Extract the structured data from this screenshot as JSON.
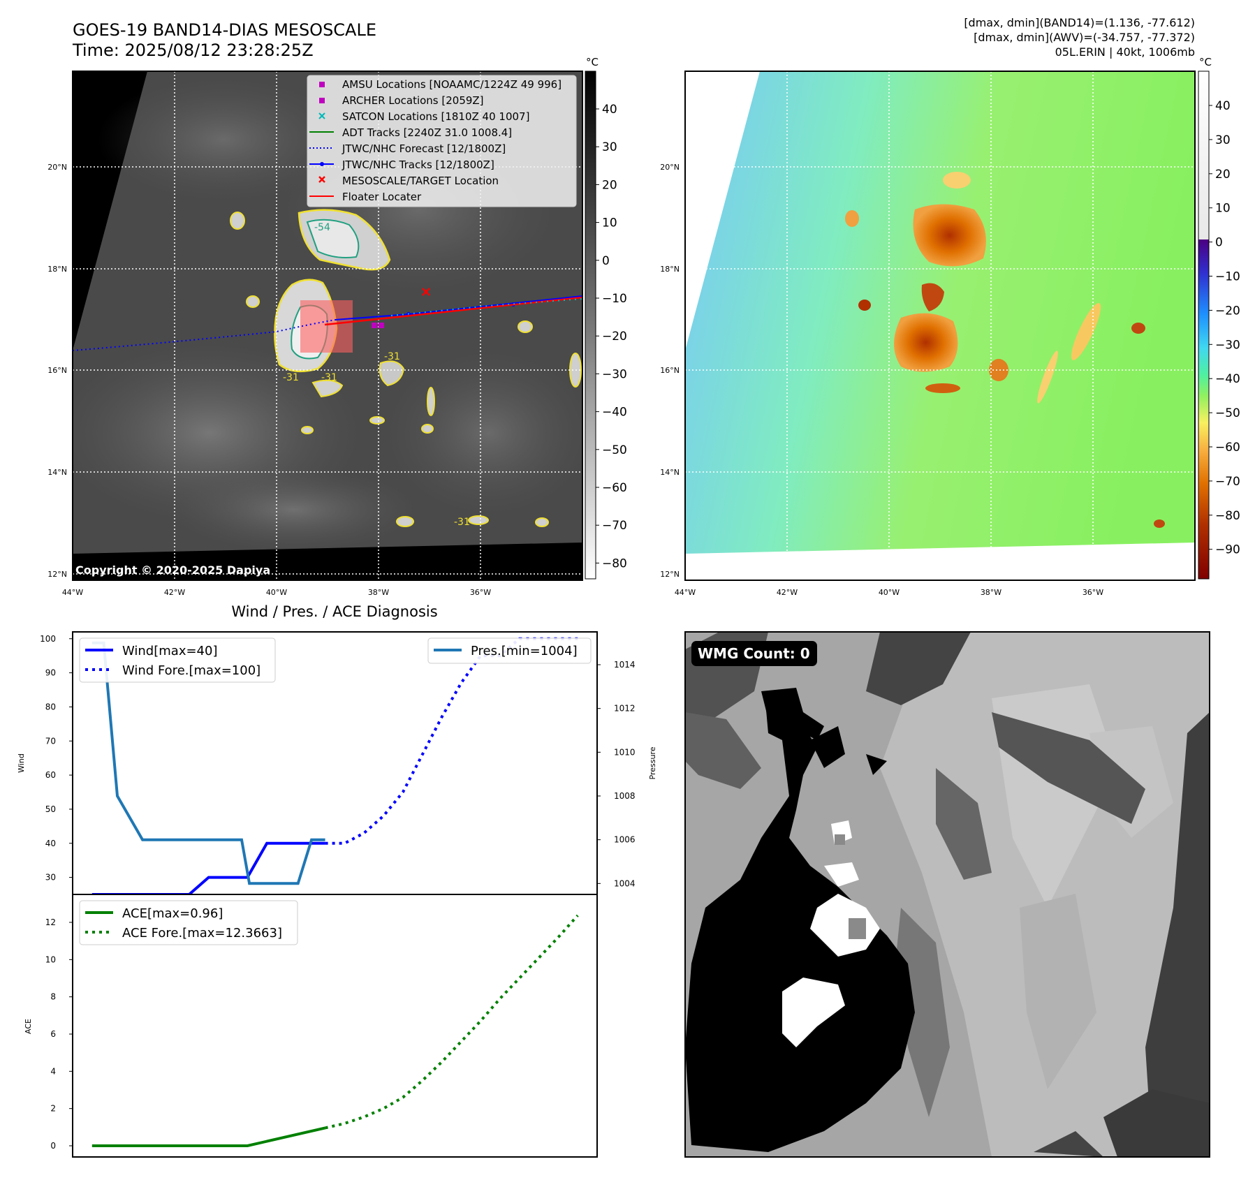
{
  "header": {
    "title": "GOES-19 BAND14-DIAS MESOSCALE",
    "time": "Time: 2025/08/12 23:28:25Z",
    "info": [
      "[dmax, dmin](BAND14)=(1.136, -77.612)",
      "[dmax, dmin](AWV)=(-34.757, -77.372)",
      "05L.ERIN | 40kt, 1006mb"
    ]
  },
  "map": {
    "lat_ticks": [
      "12°N",
      "14°N",
      "16°N",
      "18°N",
      "20°N"
    ],
    "lon_ticks": [
      "44°W",
      "42°W",
      "40°W",
      "38°W",
      "36°W"
    ],
    "copyright": "Copyright © 2020-2025 Dapiya",
    "legend": [
      {
        "label": "AMSU Locations [NOAAMC/1224Z 49 996]",
        "marker": "square",
        "color": "#c000c0"
      },
      {
        "label": "ARCHER Locations [2059Z]",
        "marker": "square",
        "color": "#c000c0"
      },
      {
        "label": "SATCON Locations [1810Z 40 1007]",
        "marker": "x",
        "color": "#00b8b8"
      },
      {
        "label": "ADT Tracks [2240Z 31.0 1008.4]",
        "marker": "line",
        "color": "#008000"
      },
      {
        "label": "JTWC/NHC Forecast [12/1800Z]",
        "marker": "dotted",
        "color": "#0000ff"
      },
      {
        "label": "JTWC/NHC Tracks [12/1800Z]",
        "marker": "line-dot",
        "color": "#0000ff"
      },
      {
        "label": "MESOSCALE/TARGET Location",
        "marker": "x",
        "color": "#ff0000"
      },
      {
        "label": "Floater Locater",
        "marker": "line",
        "color": "#ff0000"
      }
    ],
    "contour_labels": [
      "-54",
      "-31",
      "-31",
      "-31",
      "-31"
    ]
  },
  "colorbar_gray": {
    "unit": "°C",
    "ticks": [
      "40",
      "30",
      "20",
      "10",
      "0",
      "−10",
      "−20",
      "−30",
      "−40",
      "−50",
      "−60",
      "−70",
      "−80"
    ]
  },
  "colorbar_color": {
    "unit": "°C",
    "ticks": [
      "40",
      "30",
      "20",
      "10",
      "0",
      "−10",
      "−20",
      "−30",
      "−40",
      "−50",
      "−60",
      "−70",
      "−80",
      "−90"
    ]
  },
  "wmg": {
    "label": "WMG Count: 0"
  },
  "chart_data": [
    {
      "type": "line",
      "title": "Wind / Pres. / ACE Diagnosis",
      "ylabel": "Wind",
      "ylabel_right": "Pressure",
      "xlim": [
        0,
        27
      ],
      "ylim": [
        25,
        102
      ],
      "ylim_right": [
        1003.5,
        1015.5
      ],
      "yticks": [
        30,
        40,
        50,
        60,
        70,
        80,
        90,
        100
      ],
      "yticks_right": [
        1004,
        1006,
        1008,
        1010,
        1012,
        1014
      ],
      "series": [
        {
          "name": "Wind[max=40]",
          "axis": "left",
          "color": "#0000ff",
          "style": "solid",
          "x": [
            1,
            2,
            3,
            4,
            5,
            6,
            7,
            8,
            9,
            10,
            11,
            12,
            13
          ],
          "y": [
            25,
            25,
            25,
            25,
            25,
            25,
            30,
            30,
            30,
            40,
            40,
            40,
            40
          ]
        },
        {
          "name": "Wind Fore.[max=100]",
          "axis": "left",
          "color": "#0000ff",
          "style": "dotted",
          "x": [
            13,
            14,
            15,
            16,
            17,
            18,
            19,
            20,
            21,
            22,
            23,
            24,
            25,
            26
          ],
          "y": [
            40,
            40,
            43,
            48,
            55,
            66,
            77,
            87,
            95,
            95,
            100,
            100,
            100,
            100
          ]
        },
        {
          "name": "Pres.[min=1004]",
          "axis": "right",
          "color": "#1f77b4",
          "style": "solid",
          "x": [
            1,
            1.6,
            2.3,
            3.6,
            4.6,
            8.7,
            9.1,
            10.5,
            11.6,
            12.3,
            13
          ],
          "y": [
            1015,
            1015,
            1008,
            1006,
            1006,
            1006,
            1004,
            1004,
            1004,
            1006,
            1006
          ]
        }
      ]
    },
    {
      "type": "line",
      "ylabel": "ACE",
      "xlim": [
        0,
        27
      ],
      "ylim": [
        -0.6,
        13.5
      ],
      "yticks": [
        0,
        2,
        4,
        6,
        8,
        10,
        12
      ],
      "series": [
        {
          "name": "ACE[max=0.96]",
          "color": "#008000",
          "style": "solid",
          "x": [
            1,
            9,
            13
          ],
          "y": [
            0,
            0,
            0.96
          ]
        },
        {
          "name": "ACE Fore.[max=12.3663]",
          "color": "#008000",
          "style": "dotted",
          "x": [
            13,
            14,
            15,
            16,
            17,
            18,
            19,
            20,
            21,
            22,
            23,
            24,
            25,
            26
          ],
          "y": [
            0.96,
            1.2,
            1.55,
            2.0,
            2.6,
            3.5,
            4.5,
            5.6,
            6.7,
            7.9,
            9.0,
            10.1,
            11.2,
            12.37
          ]
        }
      ]
    }
  ]
}
